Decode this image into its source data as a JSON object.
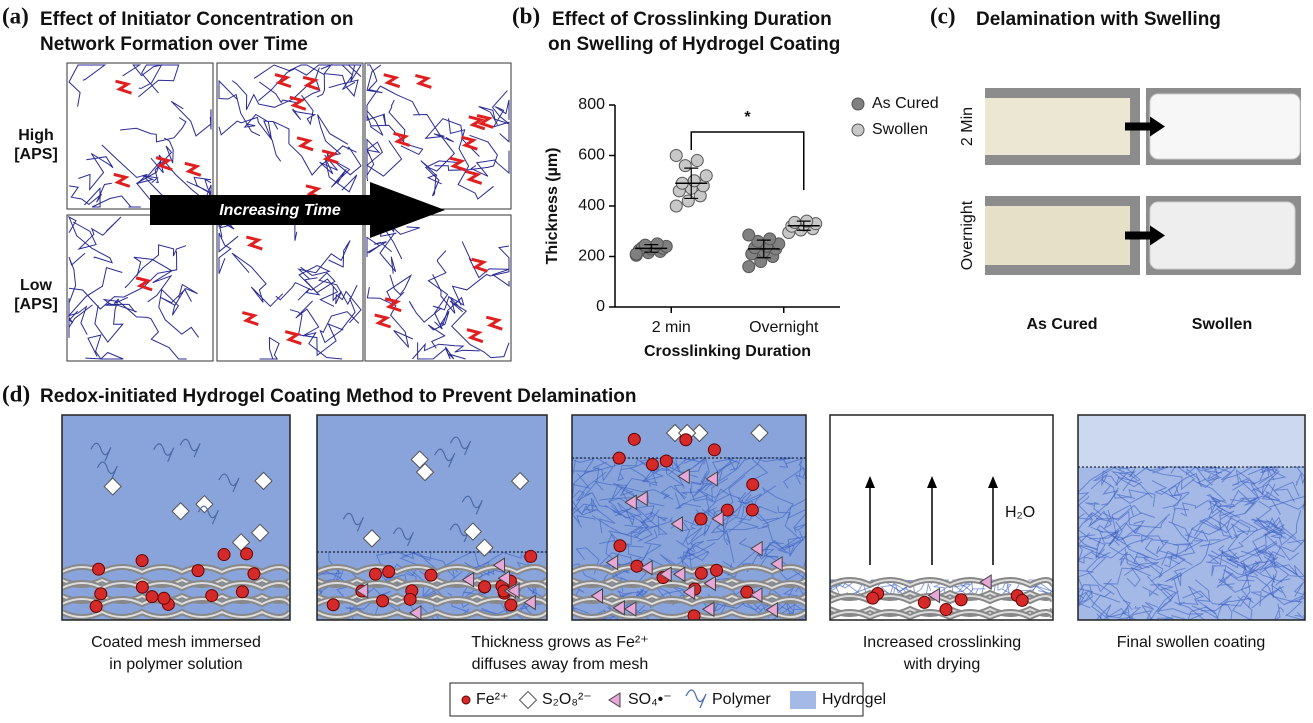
{
  "panel_a": {
    "label": "(a)",
    "title_lines": [
      "Effect of Initiator Concentration on",
      "Network Formation over Time"
    ],
    "rows": [
      [
        "High",
        "[APS]"
      ],
      [
        "Low",
        "[APS]"
      ]
    ],
    "arrow": "Increasing Time"
  },
  "panel_b": {
    "label": "(b)",
    "title_lines": [
      "Effect of Crosslinking Duration",
      "on Swelling of Hydrogel Coating"
    ],
    "chart": {
      "type": "scatter",
      "ylabel": "Thickness (µm)",
      "xlabel": "Crosslinking Duration",
      "categories": [
        "2 min",
        "Overnight"
      ],
      "ylim": [
        0,
        800
      ],
      "yticks": [
        0,
        200,
        400,
        600,
        800
      ],
      "annotation": "*",
      "series": [
        {
          "name": "As Cured",
          "color": "#808080",
          "values": [
            [
              205,
              215,
              220,
              225,
              230,
              232,
              235,
              238,
              240,
              245,
              250,
              210
            ],
            [
              160,
              180,
              200,
              210,
              220,
              230,
              235,
              240,
              250,
              260,
              270,
              285
            ]
          ],
          "means": [
            232,
            230
          ],
          "errors": [
            15,
            35
          ]
        },
        {
          "name": "Swollen",
          "color": "#c8c8c8",
          "values": [
            [
              400,
              420,
              440,
              460,
              470,
              480,
              490,
              500,
              520,
              560,
              580,
              600
            ],
            [
              295,
              305,
              310,
              320,
              325,
              330,
              335,
              340
            ]
          ],
          "means": [
            490,
            322
          ],
          "errors": [
            60,
            18
          ]
        }
      ]
    }
  },
  "panel_c": {
    "label": "(c)",
    "title": "Delamination with Swelling",
    "rows": [
      "2 Min",
      "Overnight"
    ],
    "columns": [
      "As Cured",
      "Swollen"
    ]
  },
  "panel_d": {
    "label": "(d)",
    "title": "Redox-initiated Hydrogel Coating Method to Prevent Delamination",
    "water": "H₂O",
    "captions": [
      [
        "Coated mesh immersed",
        "in polymer solution"
      ],
      [
        "Thickness grows as Fe²⁺",
        "diffuses away from mesh"
      ],
      [
        "Increased crosslinking",
        "with drying"
      ],
      [
        "Final swollen coating"
      ]
    ],
    "legend": [
      "Fe²⁺",
      "S₂O₈²⁻",
      "SO₄•⁻",
      "Polymer",
      "Hydrogel"
    ]
  }
}
